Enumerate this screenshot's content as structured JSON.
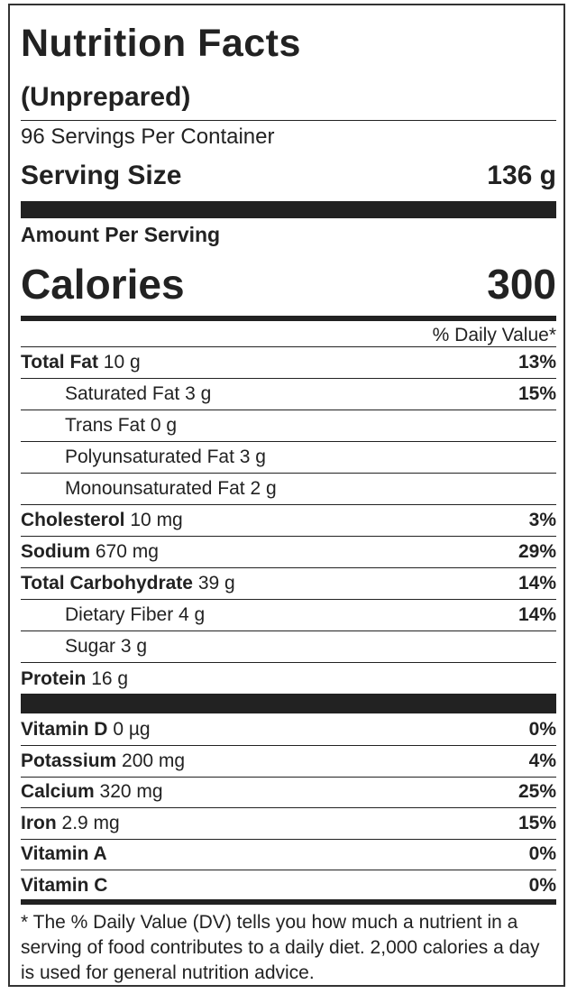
{
  "header": {
    "title": "Nutrition Facts",
    "subtitle": "(Unprepared)",
    "servings": "96 Servings Per Container",
    "serving_size_label": "Serving Size",
    "serving_size_value": "136 g"
  },
  "calories": {
    "amount_label": "Amount Per Serving",
    "label": "Calories",
    "value": "300"
  },
  "daily_value_header": "% Daily Value*",
  "rows": [
    {
      "name": "Total Fat",
      "amount": "10 g",
      "dv": "13%"
    },
    {
      "name": "Saturated Fat",
      "amount": "3 g",
      "dv": "15%"
    },
    {
      "name": "Trans Fat",
      "amount": "0 g"
    },
    {
      "name": "Polyunsaturated Fat",
      "amount": "3 g"
    },
    {
      "name": "Monounsaturated Fat",
      "amount": "2 g"
    },
    {
      "name": "Cholesterol",
      "amount": "10 mg",
      "dv": "3%"
    },
    {
      "name": "Sodium",
      "amount": "670 mg",
      "dv": "29%"
    },
    {
      "name": "Total Carbohydrate",
      "amount": "39 g",
      "dv": "14%"
    },
    {
      "name": "Dietary Fiber",
      "amount": "4 g",
      "dv": "14%"
    },
    {
      "name": "Sugar",
      "amount": "3 g"
    },
    {
      "name": "Protein",
      "amount": "16 g"
    }
  ],
  "vitamins": [
    {
      "name": "Vitamin D",
      "amount": "0 µg",
      "dv": "0%"
    },
    {
      "name": "Potassium",
      "amount": "200 mg",
      "dv": "4%"
    },
    {
      "name": "Calcium",
      "amount": "320 mg",
      "dv": "25%"
    },
    {
      "name": "Iron",
      "amount": "2.9 mg",
      "dv": "15%"
    },
    {
      "name": "Vitamin A",
      "dv": "0%"
    },
    {
      "name": "Vitamin C",
      "dv": "0%"
    }
  ],
  "footnote": "* The % Daily Value (DV) tells you how much a nutrient in a serving of food contributes to a daily diet. 2,000 calories a day is used for general nutrition advice."
}
